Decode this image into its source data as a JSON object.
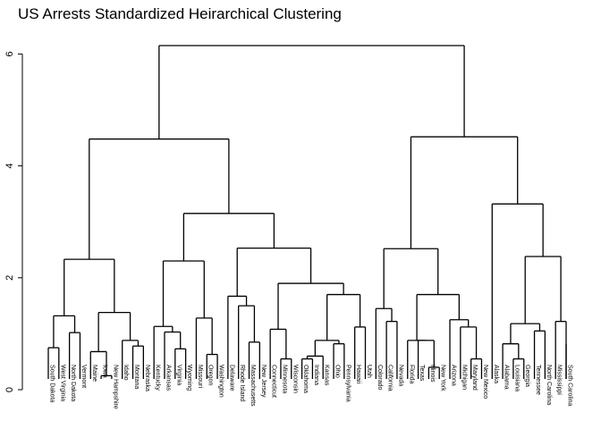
{
  "chart_data": {
    "type": "dendrogram",
    "title": "US Arrests Standardized Heirarchical Clustering",
    "xlabel": "",
    "ylabel": "",
    "ylim": [
      0,
      6.2
    ],
    "yticks": [
      0,
      2,
      4,
      6
    ],
    "grid": false,
    "leaves": [
      "South Dakota",
      "West Virginia",
      "North Dakota",
      "Vermont",
      "Maine",
      "Iowa",
      "New Hampshire",
      "Idaho",
      "Montana",
      "Nebraska",
      "Kentucky",
      "Arkansas",
      "Virginia",
      "Wyoming",
      "Missouri",
      "Oregon",
      "Washington",
      "Delaware",
      "Rhode Island",
      "Massachusetts",
      "New Jersey",
      "Connecticut",
      "Minnesota",
      "Wisconsin",
      "Oklahoma",
      "Indiana",
      "Kansas",
      "Ohio",
      "Pennsylvania",
      "Hawaii",
      "Utah",
      "Colorado",
      "California",
      "Nevada",
      "Florida",
      "Texas",
      "Illinois",
      "New York",
      "Arizona",
      "Michigan",
      "Maryland",
      "New Mexico",
      "Alaska",
      "Alabama",
      "Louisiana",
      "Georgia",
      "Tennessee",
      "North Carolina",
      "Mississippi",
      "South Carolina"
    ],
    "merges": [
      [
        0,
        1,
        0.75
      ],
      [
        2,
        3,
        1.02
      ],
      [
        50,
        51,
        1.32
      ],
      [
        5,
        6,
        0.25
      ],
      [
        4,
        53,
        0.68
      ],
      [
        8,
        9,
        0.78
      ],
      [
        7,
        55,
        0.88
      ],
      [
        54,
        56,
        1.38
      ],
      [
        52,
        57,
        2.33
      ],
      [
        12,
        13,
        0.73
      ],
      [
        11,
        59,
        1.03
      ],
      [
        10,
        60,
        1.13
      ],
      [
        15,
        16,
        0.63
      ],
      [
        14,
        62,
        1.28
      ],
      [
        61,
        63,
        2.3
      ],
      [
        19,
        20,
        0.85
      ],
      [
        18,
        65,
        1.5
      ],
      [
        17,
        66,
        1.67
      ],
      [
        21,
        22,
        1.08
      ],
      [
        23,
        24,
        0.55
      ],
      [
        25,
        26,
        0.48
      ],
      [
        69,
        70,
        0.6
      ],
      [
        71,
        27,
        0.88
      ],
      [
        28,
        29,
        0.82
      ],
      [
        72,
        73,
        1.7
      ],
      [
        30,
        31,
        1.12
      ],
      [
        74,
        75,
        1.9
      ],
      [
        68,
        76,
        1.92
      ],
      [
        67,
        77,
        2.53
      ],
      [
        64,
        78,
        3.15
      ],
      [
        58,
        79,
        4.48
      ],
      [
        32,
        33,
        1.22
      ],
      [
        31,
        81,
        1.45
      ],
      [
        36,
        37,
        0.88
      ],
      [
        38,
        39,
        0.4
      ],
      [
        83,
        84,
        0.85
      ],
      [
        40,
        41,
        1.12
      ],
      [
        85,
        86,
        1.25
      ],
      [
        34,
        87,
        1.7
      ],
      [
        83,
        88,
        1.9
      ],
      [
        82,
        89,
        2.52
      ],
      [
        42,
        43,
        0.55
      ],
      [
        44,
        91,
        0.88
      ],
      [
        45,
        46,
        1.18
      ],
      [
        47,
        48,
        1.05
      ],
      [
        93,
        94,
        1.18
      ],
      [
        49,
        50,
        0.82
      ],
      [
        95,
        96,
        2.38
      ],
      [
        43,
        97,
        3.32
      ],
      [
        90,
        98,
        4.52
      ],
      [
        80,
        99,
        6.15
      ]
    ]
  }
}
